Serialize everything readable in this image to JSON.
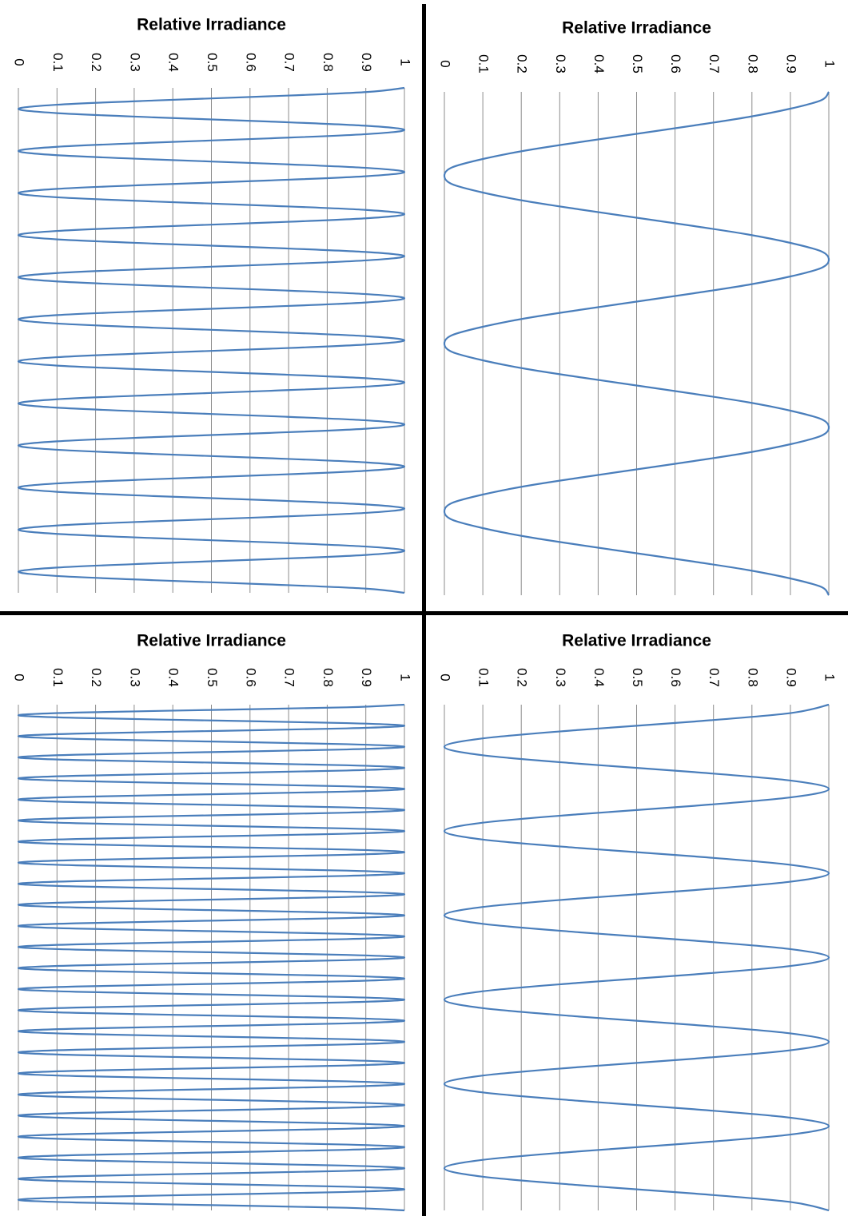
{
  "chart_data": [
    {
      "type": "line",
      "title": "Relative Irradiance",
      "color": "#4a7ebb",
      "ylim": [
        0,
        1
      ],
      "yticks": [
        0,
        0.1,
        0.2,
        0.3,
        0.4,
        0.5,
        0.6,
        0.7,
        0.8,
        0.9,
        1
      ],
      "grid": true,
      "values": [
        1,
        0.9,
        0.65,
        0.35,
        0.1,
        0,
        0.1,
        0.35,
        0.65,
        0.9,
        1,
        0.9,
        0.65,
        0.35,
        0.1,
        0,
        0.1,
        0.35,
        0.65,
        0.9,
        1,
        0.9,
        0.65,
        0.35,
        0.1,
        0,
        0.1,
        0.35,
        0.65,
        0.9,
        1,
        0.9,
        0.65,
        0.35,
        0.1,
        0,
        0.1,
        0.35,
        0.65,
        0.9,
        1,
        0.9,
        0.65,
        0.35,
        0.1,
        0,
        0.1,
        0.35,
        0.65,
        0.9,
        1,
        0.9,
        0.65,
        0.35,
        0.1,
        0,
        0.1,
        0.35,
        0.65,
        0.9,
        1,
        0.9,
        0.65,
        0.35,
        0.1,
        0,
        0.1,
        0.35,
        0.65,
        0.9,
        1,
        0.9,
        0.65,
        0.35,
        0.1,
        0,
        0.1,
        0.35,
        0.65,
        0.9,
        1,
        0.9,
        0.65,
        0.35,
        0.1,
        0,
        0.1,
        0.35,
        0.65,
        0.9,
        1,
        0.9,
        0.65,
        0.35,
        0.1,
        0,
        0.1,
        0.35,
        0.65,
        0.9,
        1,
        0.9,
        0.65,
        0.35,
        0.1,
        0,
        0.1,
        0.35,
        0.65,
        0.9,
        1,
        0.9,
        0.65,
        0.35,
        0.1,
        0,
        0.1,
        0.35,
        0.65,
        0.9,
        1
      ]
    },
    {
      "type": "line",
      "title": "Relative Irradiance",
      "color": "#4a7ebb",
      "ylim": [
        0,
        1
      ],
      "yticks": [
        0,
        0.1,
        0.2,
        0.3,
        0.4,
        0.5,
        0.6,
        0.7,
        0.8,
        0.9,
        1
      ],
      "grid": true,
      "values": [
        1,
        0.98,
        0.9,
        0.79,
        0.65,
        0.5,
        0.35,
        0.21,
        0.1,
        0.02,
        0,
        0.02,
        0.1,
        0.21,
        0.35,
        0.5,
        0.65,
        0.79,
        0.9,
        0.98,
        1,
        0.98,
        0.9,
        0.79,
        0.65,
        0.5,
        0.35,
        0.21,
        0.1,
        0.02,
        0,
        0.02,
        0.1,
        0.21,
        0.35,
        0.5,
        0.65,
        0.79,
        0.9,
        0.98,
        1,
        0.98,
        0.9,
        0.79,
        0.65,
        0.5,
        0.35,
        0.21,
        0.1,
        0.02,
        0,
        0.02,
        0.1,
        0.21,
        0.35,
        0.5,
        0.65,
        0.79,
        0.9,
        0.98,
        1
      ]
    },
    {
      "type": "line",
      "title": "Relative Irradiance",
      "color": "#4a7ebb",
      "ylim": [
        0,
        1
      ],
      "yticks": [
        0,
        0.1,
        0.2,
        0.3,
        0.4,
        0.5,
        0.6,
        0.7,
        0.8,
        0.9,
        1
      ],
      "grid": true,
      "values": [
        1,
        0.85,
        0.5,
        0.15,
        0,
        0.15,
        0.5,
        0.85,
        1,
        0.85,
        0.5,
        0.15,
        0,
        0.15,
        0.5,
        0.85,
        1,
        0.85,
        0.5,
        0.15,
        0,
        0.15,
        0.5,
        0.85,
        1,
        0.85,
        0.5,
        0.15,
        0,
        0.15,
        0.5,
        0.85,
        1,
        0.85,
        0.5,
        0.15,
        0,
        0.15,
        0.5,
        0.85,
        1,
        0.85,
        0.5,
        0.15,
        0,
        0.15,
        0.5,
        0.85,
        1,
        0.85,
        0.5,
        0.15,
        0,
        0.15,
        0.5,
        0.85,
        1,
        0.85,
        0.5,
        0.15,
        0,
        0.15,
        0.5,
        0.85,
        1,
        0.85,
        0.5,
        0.15,
        0,
        0.15,
        0.5,
        0.85,
        1,
        0.85,
        0.5,
        0.15,
        0,
        0.15,
        0.5,
        0.85,
        1,
        0.85,
        0.5,
        0.15,
        0,
        0.15,
        0.5,
        0.85,
        1,
        0.85,
        0.5,
        0.15,
        0,
        0.15,
        0.5,
        0.85,
        1,
        0.85,
        0.5,
        0.15,
        0,
        0.15,
        0.5,
        0.85,
        1,
        0.85,
        0.5,
        0.15,
        0,
        0.15,
        0.5,
        0.85,
        1,
        0.85,
        0.5,
        0.15,
        0,
        0.15,
        0.5,
        0.85,
        1,
        0.85,
        0.5,
        0.15,
        0,
        0.15,
        0.5,
        0.85,
        1,
        0.85,
        0.5,
        0.15,
        0,
        0.15,
        0.5,
        0.85,
        1,
        0.85,
        0.5,
        0.15,
        0,
        0.15,
        0.5,
        0.85,
        1,
        0.85,
        0.5,
        0.15,
        0,
        0.15,
        0.5,
        0.85,
        1,
        0.85,
        0.5,
        0.15,
        0,
        0.15,
        0.5,
        0.85,
        1,
        0.85,
        0.5,
        0.15,
        0,
        0.15,
        0.5,
        0.85,
        1,
        0.85,
        0.5,
        0.15,
        0,
        0.15,
        0.5,
        0.85,
        1,
        0.85,
        0.5,
        0.15,
        0,
        0.15,
        0.5,
        0.85,
        1,
        0.85,
        0.5,
        0.15,
        0,
        0.15,
        0.5,
        0.85,
        1
      ]
    },
    {
      "type": "line",
      "title": "Relative Irradiance",
      "color": "#4a7ebb",
      "ylim": [
        0,
        1
      ],
      "yticks": [
        0,
        0.1,
        0.2,
        0.3,
        0.4,
        0.5,
        0.6,
        0.7,
        0.8,
        0.9,
        1
      ],
      "grid": true,
      "values": [
        1,
        0.9,
        0.65,
        0.35,
        0.1,
        0,
        0.1,
        0.35,
        0.65,
        0.9,
        1,
        0.9,
        0.65,
        0.35,
        0.1,
        0,
        0.1,
        0.35,
        0.65,
        0.9,
        1,
        0.9,
        0.65,
        0.35,
        0.1,
        0,
        0.1,
        0.35,
        0.65,
        0.9,
        1,
        0.9,
        0.65,
        0.35,
        0.1,
        0,
        0.1,
        0.35,
        0.65,
        0.9,
        1,
        0.9,
        0.65,
        0.35,
        0.1,
        0,
        0.1,
        0.35,
        0.65,
        0.9,
        1,
        0.9,
        0.65,
        0.35,
        0.1,
        0,
        0.1,
        0.35,
        0.65,
        0.9,
        1
      ]
    }
  ]
}
